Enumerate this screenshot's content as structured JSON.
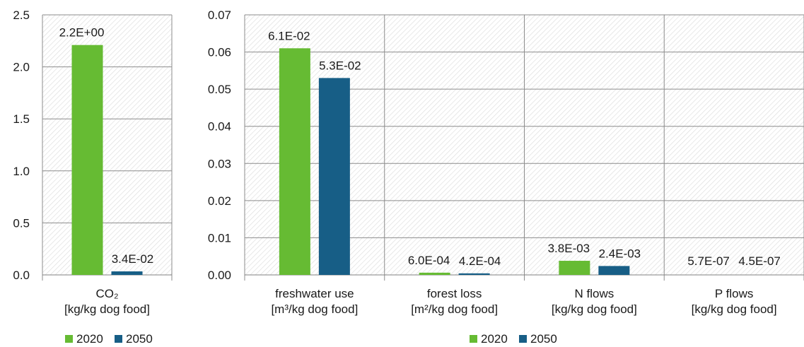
{
  "colors": {
    "2020": "#66bb33",
    "2050": "#175e86",
    "grid": "#8c8c8c",
    "hatch": "#d9d9d9"
  },
  "chart_data": [
    {
      "type": "bar",
      "categories": [
        "CO₂\n[kg/kg dog food]"
      ],
      "series": [
        {
          "name": "2020",
          "values": [
            2.21
          ],
          "labels": [
            "2.2E+00"
          ]
        },
        {
          "name": "2050",
          "values": [
            0.034
          ],
          "labels": [
            "3.4E-02"
          ]
        }
      ],
      "yticks": [
        "0.0",
        "0.5",
        "1.0",
        "1.5",
        "2.0",
        "2.5"
      ],
      "ylim": [
        0,
        2.5
      ],
      "grid": true,
      "legend": "bottom-left"
    },
    {
      "type": "bar",
      "categories": [
        "freshwater use\n[m³/kg dog food]",
        "forest loss\n[m²/kg dog food]",
        "N flows\n[kg/kg dog food]",
        "P flows\n[kg/kg dog food]"
      ],
      "series": [
        {
          "name": "2020",
          "values": [
            0.061,
            0.0006,
            0.0038,
            5.7e-07
          ],
          "labels": [
            "6.1E-02",
            "6.0E-04",
            "3.8E-03",
            "5.7E-07"
          ]
        },
        {
          "name": "2050",
          "values": [
            0.053,
            0.00042,
            0.0024,
            4.5e-07
          ],
          "labels": [
            "5.3E-02",
            "4.2E-04",
            "2.4E-03",
            "4.5E-07"
          ]
        }
      ],
      "yticks": [
        "0.00",
        "0.01",
        "0.02",
        "0.03",
        "0.04",
        "0.05",
        "0.06",
        "0.07"
      ],
      "ylim": [
        0,
        0.07
      ],
      "grid": true,
      "legend": "bottom-center"
    }
  ]
}
